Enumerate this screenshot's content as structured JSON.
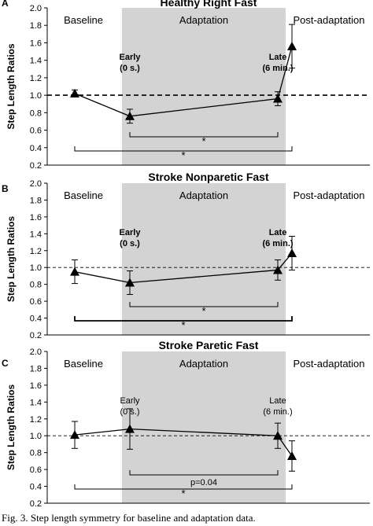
{
  "caption": "Fig. 3. Step length symmetry for baseline and adaptation data.",
  "colors": {
    "shade": "#d3d3d3",
    "line": "#000000",
    "marker": "#000000"
  },
  "chart_data": [
    {
      "type": "line",
      "letter": "A",
      "title": "Healthy Right Fast",
      "ylabel": "Step Length Ratios",
      "xlabel": "",
      "ylim": [
        0.2,
        2.0
      ],
      "yticks": [
        "0.2",
        "0.4",
        "0.6",
        "0.8",
        "1.0",
        "1.2",
        "1.4",
        "1.6",
        "1.8",
        "2.0"
      ],
      "reference_line": {
        "y": 1.0,
        "style": "dashed-heavy"
      },
      "phases": [
        "Baseline",
        "Adaptation",
        "Post-adaptation"
      ],
      "points": [
        {
          "label": "",
          "y": 1.02,
          "err": 0.04
        },
        {
          "label": "Early\n(0 s.)",
          "y": 0.76,
          "err": 0.08
        },
        {
          "label": "Late\n(6 min.)",
          "y": 0.96,
          "err": 0.08
        },
        {
          "label": "",
          "y": 1.56,
          "err": 0.25
        }
      ],
      "brackets": [
        {
          "from": 1,
          "to": 2,
          "label": "*"
        },
        {
          "from": 0,
          "to": 3,
          "label": "*"
        }
      ],
      "grid": false
    },
    {
      "type": "line",
      "letter": "B",
      "title": "Stroke Nonparetic Fast",
      "ylabel": "Step Length Ratios",
      "xlabel": "",
      "ylim": [
        0.2,
        2.0
      ],
      "yticks": [
        "0.2",
        "0.4",
        "0.6",
        "0.8",
        "1.0",
        "1.2",
        "1.4",
        "1.6",
        "1.8",
        "2.0"
      ],
      "reference_line": {
        "y": 1.0,
        "style": "dashed-light"
      },
      "phases": [
        "Baseline",
        "Adaptation",
        "Post-adaptation"
      ],
      "points": [
        {
          "label": "",
          "y": 0.95,
          "err": 0.14
        },
        {
          "label": "Early\n(0 s.)",
          "y": 0.82,
          "err": 0.14
        },
        {
          "label": "Late\n(6 min.)",
          "y": 0.97,
          "err": 0.12
        },
        {
          "label": "",
          "y": 1.17,
          "err": 0.2
        }
      ],
      "brackets": [
        {
          "from": 1,
          "to": 2,
          "label": "*"
        },
        {
          "from": 0,
          "to": 3,
          "label": "*"
        }
      ],
      "grid": false
    },
    {
      "type": "line",
      "letter": "C",
      "title": "Stroke Paretic Fast",
      "ylabel": "Step Length Ratios",
      "xlabel": "",
      "ylim": [
        0.2,
        2.0
      ],
      "yticks": [
        "0.2",
        "0.4",
        "0.6",
        "0.8",
        "1.0",
        "1.2",
        "1.4",
        "1.6",
        "1.8",
        "2.0"
      ],
      "reference_line": {
        "y": 1.0,
        "style": "dashed-light"
      },
      "phases": [
        "Baseline",
        "Adaptation",
        "Post-adaptation"
      ],
      "points": [
        {
          "label": "",
          "y": 1.01,
          "err": 0.16
        },
        {
          "label": "Early\n(0 s.)",
          "y": 1.08,
          "err": 0.24
        },
        {
          "label": "Late\n(6 min.)",
          "y": 1.0,
          "err": 0.15
        },
        {
          "label": "",
          "y": 0.76,
          "err": 0.18
        }
      ],
      "brackets": [
        {
          "from": 1,
          "to": 2,
          "label": "p=0.04"
        },
        {
          "from": 0,
          "to": 3,
          "label": "*"
        }
      ],
      "grid": false
    }
  ]
}
